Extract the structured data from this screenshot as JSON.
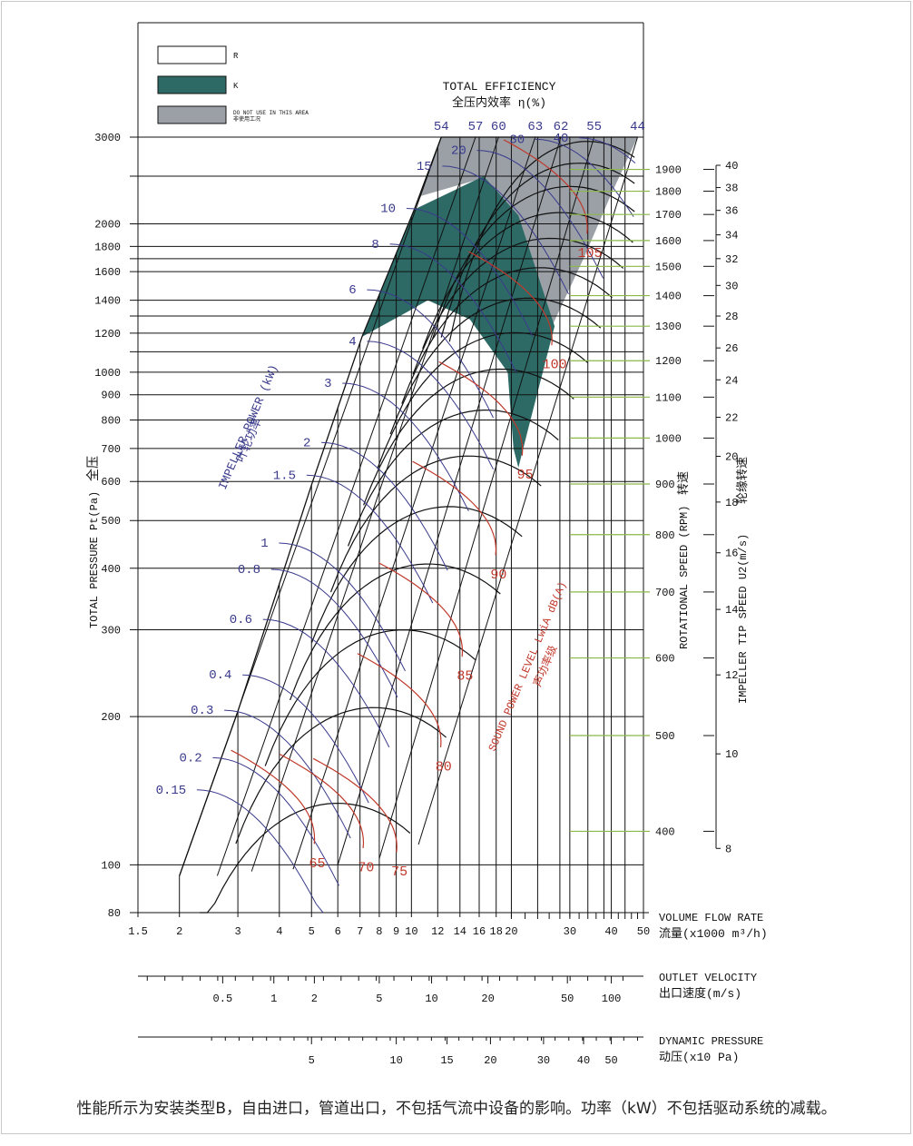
{
  "chart_data": {
    "type": "line",
    "title": "TOTAL EFFICIENCY",
    "title_cn": "全压内效率 η(%)",
    "legend": [
      {
        "name": "R",
        "desc": "",
        "color": "#ffffff"
      },
      {
        "name": "K",
        "desc": "",
        "color": "#2d6a66"
      },
      {
        "name": "DO NOT USE IN THIS AREA",
        "desc": "非使用工况",
        "color": "#9aa0a6"
      }
    ],
    "colors": {
      "constant_speed": "#111111",
      "power": "#3a3a8c",
      "sound": "#c0392b",
      "speed_tick": "#8ab84a",
      "k_area": "#2d6a66",
      "no_use": "#9aa0a6"
    },
    "y_axis": {
      "label": "TOTAL PRESSURE Pt(Pa)",
      "label_cn": "全压",
      "scale": "log",
      "range": [
        80,
        3000
      ],
      "ticks": [
        3000,
        2000,
        1800,
        1600,
        1400,
        1200,
        1000,
        900,
        800,
        700,
        600,
        500,
        400,
        300,
        200,
        100,
        80
      ]
    },
    "x_axis": {
      "label": "VOLUME FLOW RATE",
      "label_cn": "流量(x1000 m³/h)",
      "scale": "log",
      "range": [
        1.5,
        50
      ],
      "ticks": [
        "1.5",
        "2",
        "3",
        "4",
        "5",
        "6",
        "7",
        "8",
        "9",
        "10",
        "12",
        "14",
        "16",
        "18",
        "20",
        "30",
        "40",
        "50"
      ]
    },
    "outlet_velocity": {
      "label": "OUTLET VELOCITY",
      "label_cn": "出口速度(m/s)",
      "ticks": [
        {
          "v": "0.5",
          "q": 2.7
        },
        {
          "v": "1",
          "q": 3.85
        },
        {
          "v": "2",
          "q": 5.1
        },
        {
          "v": "5",
          "q": 8.0
        },
        {
          "v": "10",
          "q": 11.5
        },
        {
          "v": "20",
          "q": 17.0
        },
        {
          "v": "50",
          "q": 29.5
        },
        {
          "v": "100",
          "q": 40
        }
      ]
    },
    "dynamic_pressure": {
      "label": "DYNAMIC PRESSURE",
      "label_cn": "动压(x10 Pa)",
      "ticks": [
        {
          "v": "5",
          "q": 5.0
        },
        {
          "v": "10",
          "q": 9.0
        },
        {
          "v": "15",
          "q": 12.8
        },
        {
          "v": "20",
          "q": 17.3
        },
        {
          "v": "30",
          "q": 25
        },
        {
          "v": "40",
          "q": 33
        },
        {
          "v": "50",
          "q": 40
        }
      ]
    },
    "rotational_speed": {
      "label": "ROTATIONAL SPEED (RPM)",
      "label_cn": "转速",
      "ticks": [
        {
          "v": "1900",
          "p": 2580
        },
        {
          "v": "1800",
          "p": 2330
        },
        {
          "v": "1700",
          "p": 2090
        },
        {
          "v": "1600",
          "p": 1850
        },
        {
          "v": "1500",
          "p": 1640
        },
        {
          "v": "1400",
          "p": 1430
        },
        {
          "v": "1300",
          "p": 1240
        },
        {
          "v": "1200",
          "p": 1055
        },
        {
          "v": "1100",
          "p": 890
        },
        {
          "v": "1000",
          "p": 735
        },
        {
          "v": "900",
          "p": 593
        },
        {
          "v": "800",
          "p": 468
        },
        {
          "v": "700",
          "p": 358
        },
        {
          "v": "600",
          "p": 263
        },
        {
          "v": "500",
          "p": 183
        },
        {
          "v": "400",
          "p": 117
        }
      ]
    },
    "tip_speed": {
      "label": "IMPELLER TIP SPEED U2(m/s)",
      "label_cn": "轮缘转速",
      "ticks": [
        {
          "v": "40",
          "p": 2630
        },
        {
          "v": "38",
          "p": 2370
        },
        {
          "v": "36",
          "p": 2130
        },
        {
          "v": "34",
          "p": 1900
        },
        {
          "v": "32",
          "p": 1700
        },
        {
          "v": "30",
          "p": 1500
        },
        {
          "v": "28",
          "p": 1300
        },
        {
          "v": "26",
          "p": 1120
        },
        {
          "v": "24",
          "p": 965
        },
        {
          "v": "22",
          "p": 810
        },
        {
          "v": "20",
          "p": 675
        },
        {
          "v": "18",
          "p": 545
        },
        {
          "v": "16",
          "p": 430
        },
        {
          "v": "14",
          "p": 330
        },
        {
          "v": "12",
          "p": 243
        },
        {
          "v": "10",
          "p": 168
        },
        {
          "v": "8",
          "p": 108
        }
      ]
    },
    "efficiency_labels": {
      "ticks": [
        {
          "v": "54",
          "q": 12.3
        },
        {
          "v": "57",
          "q": 15.6
        },
        {
          "v": "60",
          "q": 18.3
        },
        {
          "v": "63",
          "q": 23.6
        },
        {
          "v": "62",
          "q": 28.2
        },
        {
          "v": "55",
          "q": 35.5
        },
        {
          "v": "44",
          "q": 48
        }
      ]
    },
    "power": {
      "label": "IMPELLER POWER (kW)",
      "label_cn": "叶轮功率",
      "labels": [
        {
          "v": "0.15",
          "q": 2.15,
          "p": 142
        },
        {
          "v": "0.2",
          "q": 2.4,
          "p": 165
        },
        {
          "v": "0.3",
          "q": 2.6,
          "p": 206
        },
        {
          "v": "0.4",
          "q": 2.95,
          "p": 243
        },
        {
          "v": "0.6",
          "q": 3.4,
          "p": 315
        },
        {
          "v": "0.8",
          "q": 3.6,
          "p": 398
        },
        {
          "v": "1",
          "q": 3.8,
          "p": 450
        },
        {
          "v": "1.5",
          "q": 4.6,
          "p": 618
        },
        {
          "v": "2",
          "q": 5.1,
          "p": 720
        },
        {
          "v": "3",
          "q": 5.9,
          "p": 950
        },
        {
          "v": "4",
          "q": 7.0,
          "p": 1155
        },
        {
          "v": "6",
          "q": 7.0,
          "p": 1470
        },
        {
          "v": "8",
          "q": 8.2,
          "p": 1820
        },
        {
          "v": "10",
          "q": 9.2,
          "p": 2150
        },
        {
          "v": "15",
          "q": 11.8,
          "p": 2620
        },
        {
          "v": "20",
          "q": 15.0,
          "p": 2820
        },
        {
          "v": "30",
          "q": 22.5,
          "p": 2970
        },
        {
          "v": "40",
          "q": 30.5,
          "p": 2990
        }
      ]
    },
    "sound": {
      "label": "SOUND POWER LEVEL LwiA dB(A)",
      "label_cn": "声功率级",
      "labels": [
        {
          "v": "65",
          "q": 5.2,
          "p": 105
        },
        {
          "v": "70",
          "q": 7.3,
          "p": 103
        },
        {
          "v": "75",
          "q": 9.2,
          "p": 101
        },
        {
          "v": "80",
          "q": 12.5,
          "p": 165
        },
        {
          "v": "85",
          "q": 14.5,
          "p": 252
        },
        {
          "v": "90",
          "q": 18.3,
          "p": 405
        },
        {
          "v": "95",
          "q": 22.0,
          "p": 645
        },
        {
          "v": "100",
          "q": 27.0,
          "p": 1080
        },
        {
          "v": "105",
          "q": 34.5,
          "p": 1820
        }
      ]
    }
  },
  "footnote": "性能所示为安装类型B，自由进口，管道出口，不包括气流中设备的影响。功率（kW）不包括驱动系统的减载。"
}
